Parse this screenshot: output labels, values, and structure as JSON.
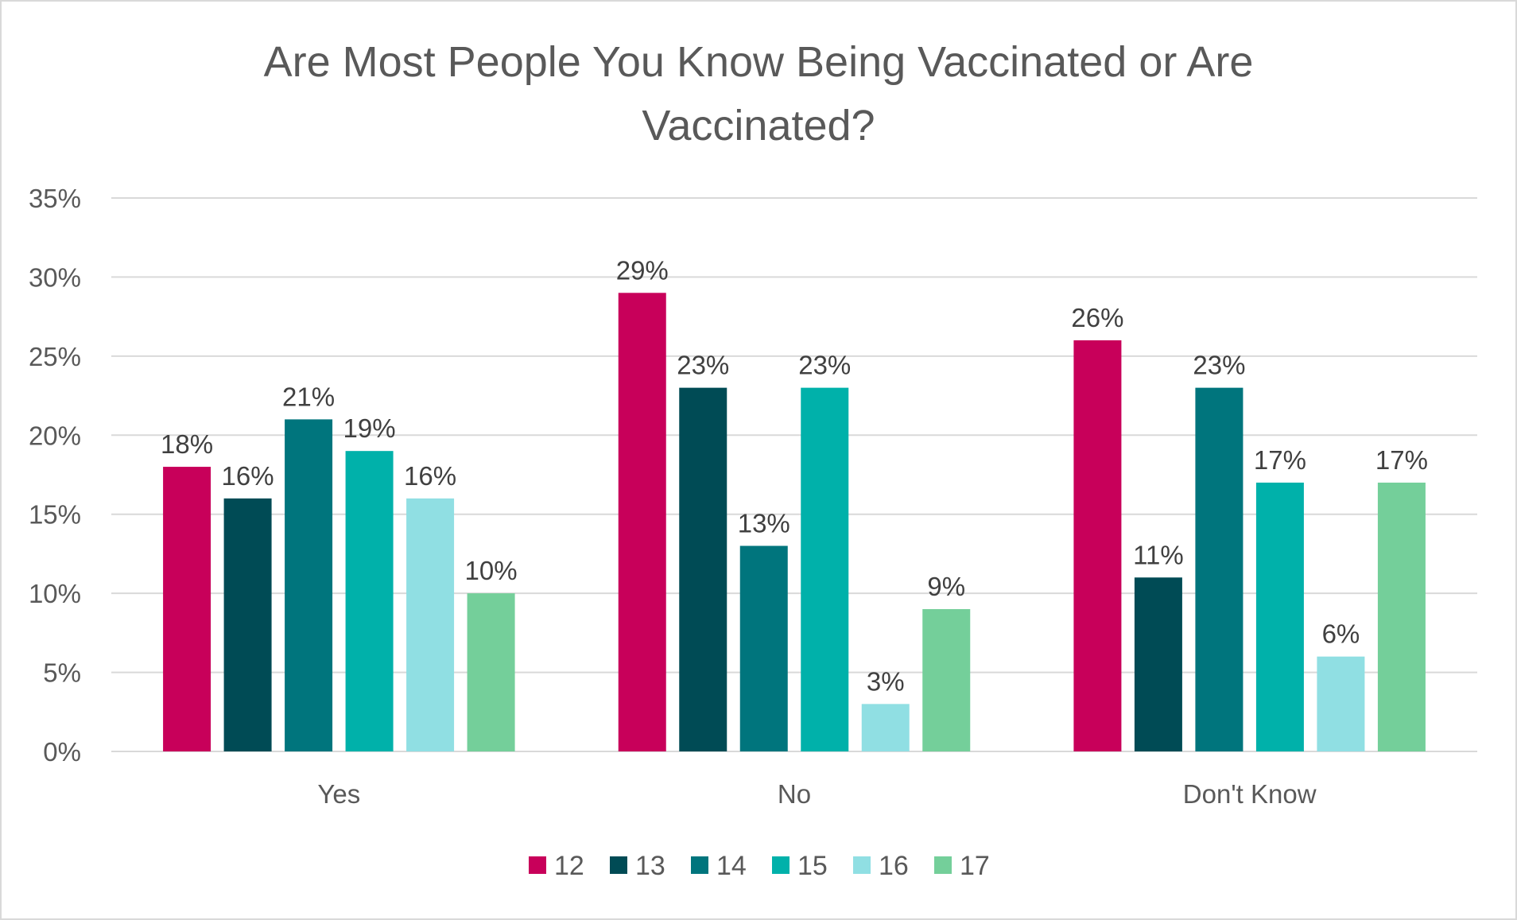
{
  "chart_data": {
    "type": "bar",
    "title_lines": [
      "Are Most People You Know Being Vaccinated or Are",
      "Vaccinated?"
    ],
    "categories": [
      "Yes",
      "No",
      "Don't Know"
    ],
    "series": [
      {
        "name": "12",
        "values": [
          18,
          29,
          26
        ],
        "color": "#c8005a"
      },
      {
        "name": "13",
        "values": [
          16,
          23,
          11
        ],
        "color": "#004b55"
      },
      {
        "name": "14",
        "values": [
          21,
          13,
          23
        ],
        "color": "#00757d"
      },
      {
        "name": "15",
        "values": [
          19,
          23,
          17
        ],
        "color": "#00b1aa"
      },
      {
        "name": "16",
        "values": [
          16,
          3,
          6
        ],
        "color": "#90dfe3"
      },
      {
        "name": "17",
        "values": [
          10,
          9,
          17
        ],
        "color": "#74cf9a"
      }
    ],
    "ylim": [
      0,
      35
    ],
    "yticks": [
      0,
      5,
      10,
      15,
      20,
      25,
      30,
      35
    ],
    "value_suffix": "%",
    "grid": true,
    "legend_position": "bottom"
  }
}
